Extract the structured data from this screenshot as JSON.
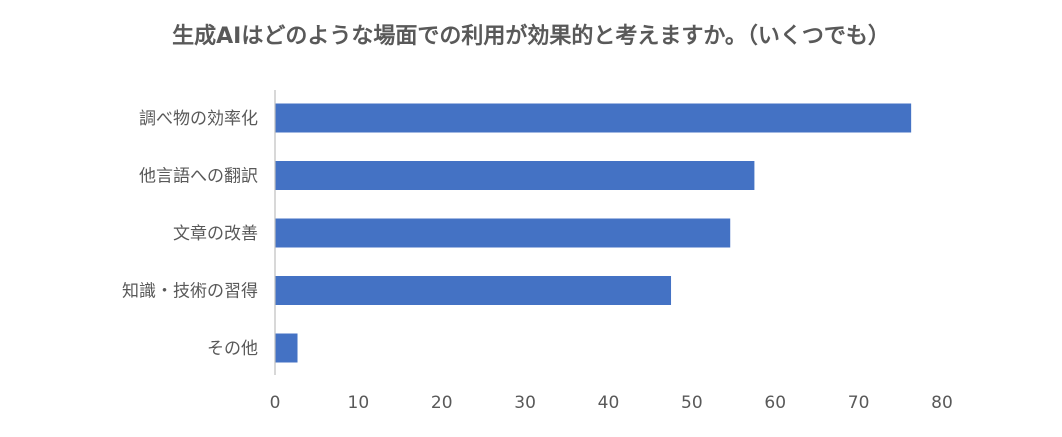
{
  "chart_data": {
    "type": "bar",
    "orientation": "horizontal",
    "title": "生成AIはどのような場面での利用が効果的と考えますか。（いくつでも）",
    "categories": [
      "調べ物の効率化",
      "他言語への翻訳",
      "文章の改善",
      "知識・技術の習得",
      "その他"
    ],
    "values": [
      76.3,
      57.5,
      54.6,
      47.5,
      2.7
    ],
    "xlim": [
      0,
      80
    ],
    "xticks": [
      0,
      10,
      20,
      30,
      40,
      50,
      60,
      70,
      80
    ],
    "grid": false,
    "legend": "none",
    "bar_color": "#4472C4"
  }
}
